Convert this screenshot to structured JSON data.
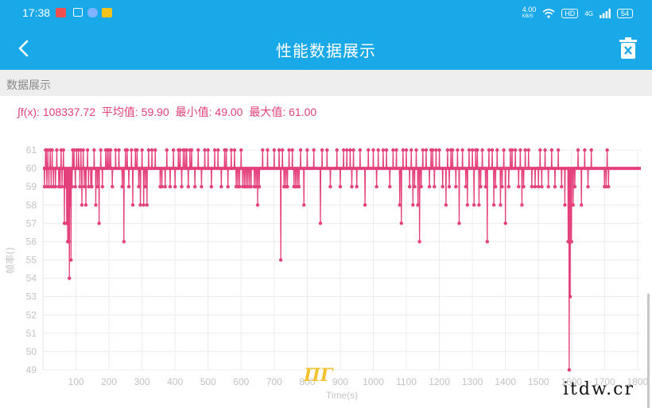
{
  "status_bar": {
    "time": "17:38",
    "net_speed_value": "4.00",
    "net_speed_unit": "KB/S",
    "hd_badge": "HD",
    "signal_label": "4G",
    "battery": "54",
    "icons": [
      "notification-icon",
      "notification-icon",
      "notification-icon",
      "notification-icon",
      "wifi-icon",
      "signal-icon",
      "battery-icon"
    ]
  },
  "app_bar": {
    "title": "性能数据展示",
    "back_icon": "chevron-left-icon",
    "delete_icon": "trash-icon",
    "bg_color": "#1aa9e8"
  },
  "section": {
    "title": "数据展示"
  },
  "stats": {
    "sum_label": "∫f(x): 108337.72",
    "avg_label": "平均值: 59.90",
    "min_label": "最小值: 49.00",
    "max_label": "最大值: 61.00"
  },
  "watermark": "itdw.cr",
  "chart_data": {
    "type": "line",
    "xlabel": "Time(s)",
    "ylabel": "帧率()",
    "xlim": [
      0,
      1810
    ],
    "ylim": [
      49,
      61
    ],
    "x_ticks": [
      100,
      200,
      300,
      400,
      500,
      600,
      700,
      800,
      900,
      1000,
      1100,
      1200,
      1300,
      1400,
      1500,
      1600,
      1700,
      1800
    ],
    "y_ticks": [
      49,
      50,
      51,
      52,
      53,
      54,
      55,
      56,
      57,
      58,
      59,
      60,
      61
    ],
    "grid": true,
    "line_color": "#e4407b",
    "baseline": 60,
    "length": 1810,
    "deviations": [
      [
        5,
        59
      ],
      [
        8,
        61
      ],
      [
        10,
        61
      ],
      [
        12,
        59
      ],
      [
        15,
        61
      ],
      [
        18,
        59
      ],
      [
        22,
        61
      ],
      [
        25,
        59
      ],
      [
        28,
        61
      ],
      [
        32,
        59
      ],
      [
        38,
        59
      ],
      [
        42,
        61
      ],
      [
        48,
        59
      ],
      [
        52,
        59
      ],
      [
        55,
        61
      ],
      [
        58,
        59
      ],
      [
        62,
        61
      ],
      [
        65,
        57
      ],
      [
        68,
        59
      ],
      [
        70,
        59
      ],
      [
        72,
        57
      ],
      [
        75,
        56
      ],
      [
        78,
        56
      ],
      [
        80,
        54
      ],
      [
        82,
        58
      ],
      [
        85,
        55
      ],
      [
        88,
        59
      ],
      [
        90,
        61
      ],
      [
        94,
        61
      ],
      [
        98,
        59
      ],
      [
        102,
        61
      ],
      [
        108,
        61
      ],
      [
        112,
        59
      ],
      [
        115,
        61
      ],
      [
        118,
        58
      ],
      [
        122,
        61
      ],
      [
        125,
        59
      ],
      [
        130,
        58
      ],
      [
        135,
        61
      ],
      [
        138,
        59
      ],
      [
        145,
        59
      ],
      [
        148,
        59
      ],
      [
        155,
        61
      ],
      [
        160,
        58
      ],
      [
        165,
        59
      ],
      [
        170,
        57
      ],
      [
        175,
        61
      ],
      [
        180,
        59
      ],
      [
        190,
        61
      ],
      [
        195,
        61
      ],
      [
        200,
        61
      ],
      [
        205,
        61
      ],
      [
        210,
        59
      ],
      [
        220,
        61
      ],
      [
        230,
        61
      ],
      [
        240,
        59
      ],
      [
        245,
        56
      ],
      [
        250,
        61
      ],
      [
        255,
        61
      ],
      [
        260,
        59
      ],
      [
        268,
        61
      ],
      [
        272,
        58
      ],
      [
        280,
        61
      ],
      [
        285,
        61
      ],
      [
        290,
        59
      ],
      [
        295,
        58
      ],
      [
        300,
        61
      ],
      [
        305,
        58
      ],
      [
        310,
        59
      ],
      [
        315,
        58
      ],
      [
        320,
        61
      ],
      [
        330,
        61
      ],
      [
        340,
        61
      ],
      [
        355,
        59
      ],
      [
        360,
        59
      ],
      [
        370,
        59
      ],
      [
        375,
        61
      ],
      [
        385,
        59
      ],
      [
        395,
        61
      ],
      [
        400,
        59
      ],
      [
        410,
        61
      ],
      [
        415,
        61
      ],
      [
        420,
        59
      ],
      [
        425,
        61
      ],
      [
        430,
        61
      ],
      [
        435,
        61
      ],
      [
        440,
        59
      ],
      [
        445,
        61
      ],
      [
        450,
        61
      ],
      [
        460,
        59
      ],
      [
        470,
        61
      ],
      [
        480,
        59
      ],
      [
        490,
        61
      ],
      [
        500,
        61
      ],
      [
        510,
        59
      ],
      [
        520,
        61
      ],
      [
        530,
        61
      ],
      [
        540,
        59
      ],
      [
        550,
        61
      ],
      [
        555,
        61
      ],
      [
        560,
        59
      ],
      [
        570,
        61
      ],
      [
        580,
        61
      ],
      [
        585,
        59
      ],
      [
        590,
        59
      ],
      [
        595,
        59
      ],
      [
        600,
        61
      ],
      [
        605,
        59
      ],
      [
        610,
        59
      ],
      [
        615,
        59
      ],
      [
        620,
        59
      ],
      [
        625,
        59
      ],
      [
        630,
        59
      ],
      [
        640,
        59
      ],
      [
        645,
        59
      ],
      [
        650,
        58
      ],
      [
        655,
        59
      ],
      [
        665,
        61
      ],
      [
        680,
        61
      ],
      [
        700,
        61
      ],
      [
        715,
        61
      ],
      [
        720,
        55
      ],
      [
        725,
        61
      ],
      [
        730,
        59
      ],
      [
        735,
        59
      ],
      [
        740,
        59
      ],
      [
        745,
        61
      ],
      [
        755,
        61
      ],
      [
        760,
        59
      ],
      [
        765,
        59
      ],
      [
        770,
        59
      ],
      [
        775,
        59
      ],
      [
        780,
        61
      ],
      [
        790,
        58
      ],
      [
        800,
        61
      ],
      [
        820,
        61
      ],
      [
        840,
        57
      ],
      [
        845,
        61
      ],
      [
        860,
        61
      ],
      [
        870,
        59
      ],
      [
        890,
        61
      ],
      [
        900,
        59
      ],
      [
        910,
        61
      ],
      [
        920,
        61
      ],
      [
        930,
        61
      ],
      [
        935,
        59
      ],
      [
        940,
        61
      ],
      [
        950,
        59
      ],
      [
        960,
        61
      ],
      [
        975,
        58
      ],
      [
        985,
        61
      ],
      [
        1000,
        61
      ],
      [
        1010,
        59
      ],
      [
        1015,
        61
      ],
      [
        1030,
        61
      ],
      [
        1040,
        61
      ],
      [
        1050,
        59
      ],
      [
        1060,
        61
      ],
      [
        1070,
        61
      ],
      [
        1080,
        58
      ],
      [
        1085,
        57
      ],
      [
        1090,
        61
      ],
      [
        1100,
        61
      ],
      [
        1110,
        59
      ],
      [
        1115,
        61
      ],
      [
        1120,
        58
      ],
      [
        1125,
        59
      ],
      [
        1130,
        61
      ],
      [
        1135,
        58
      ],
      [
        1140,
        56
      ],
      [
        1145,
        59
      ],
      [
        1150,
        61
      ],
      [
        1160,
        61
      ],
      [
        1170,
        59
      ],
      [
        1175,
        61
      ],
      [
        1180,
        61
      ],
      [
        1185,
        59
      ],
      [
        1190,
        61
      ],
      [
        1200,
        61
      ],
      [
        1210,
        59
      ],
      [
        1220,
        58
      ],
      [
        1225,
        61
      ],
      [
        1230,
        59
      ],
      [
        1235,
        61
      ],
      [
        1240,
        61
      ],
      [
        1250,
        59
      ],
      [
        1255,
        61
      ],
      [
        1260,
        57
      ],
      [
        1270,
        61
      ],
      [
        1280,
        59
      ],
      [
        1285,
        58
      ],
      [
        1290,
        61
      ],
      [
        1300,
        61
      ],
      [
        1305,
        58
      ],
      [
        1310,
        61
      ],
      [
        1315,
        61
      ],
      [
        1320,
        58
      ],
      [
        1325,
        59
      ],
      [
        1330,
        61
      ],
      [
        1340,
        59
      ],
      [
        1345,
        56
      ],
      [
        1350,
        61
      ],
      [
        1360,
        61
      ],
      [
        1365,
        58
      ],
      [
        1370,
        59
      ],
      [
        1375,
        61
      ],
      [
        1385,
        58
      ],
      [
        1390,
        59
      ],
      [
        1395,
        61
      ],
      [
        1400,
        57
      ],
      [
        1410,
        59
      ],
      [
        1415,
        61
      ],
      [
        1420,
        61
      ],
      [
        1430,
        61
      ],
      [
        1440,
        59
      ],
      [
        1445,
        61
      ],
      [
        1450,
        58
      ],
      [
        1455,
        59
      ],
      [
        1460,
        61
      ],
      [
        1470,
        61
      ],
      [
        1480,
        59
      ],
      [
        1490,
        59
      ],
      [
        1500,
        59
      ],
      [
        1505,
        61
      ],
      [
        1510,
        59
      ],
      [
        1520,
        61
      ],
      [
        1530,
        59
      ],
      [
        1540,
        61
      ],
      [
        1550,
        59
      ],
      [
        1560,
        61
      ],
      [
        1570,
        59
      ],
      [
        1580,
        58
      ],
      [
        1590,
        56
      ],
      [
        1593,
        49
      ],
      [
        1596,
        53
      ],
      [
        1600,
        56
      ],
      [
        1605,
        58
      ],
      [
        1610,
        59
      ],
      [
        1620,
        61
      ],
      [
        1630,
        58
      ],
      [
        1640,
        61
      ],
      [
        1650,
        59
      ],
      [
        1660,
        61
      ],
      [
        1700,
        59
      ],
      [
        1705,
        59
      ],
      [
        1708,
        61
      ],
      [
        1712,
        59
      ]
    ]
  }
}
